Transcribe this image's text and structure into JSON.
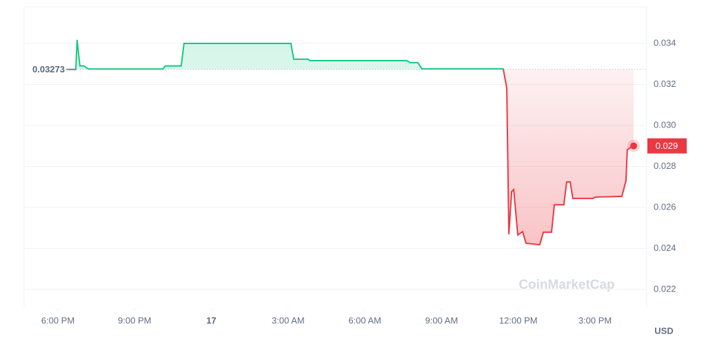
{
  "chart_data": {
    "type": "line",
    "x": [
      0.43,
      0.7,
      0.75,
      0.86,
      1.02,
      1.19,
      4.1,
      4.2,
      4.82,
      4.93,
      9.11,
      9.22,
      9.78,
      9.86,
      13.64,
      13.77,
      14.07,
      14.23,
      17.41,
      17.55,
      17.63,
      17.74,
      17.82,
      17.98,
      18.17,
      18.3,
      18.84,
      18.98,
      19.3,
      19.41,
      19.78,
      19.89,
      20.03,
      20.13,
      20.92,
      21.0,
      22.05,
      22.21,
      22.26,
      22.51
    ],
    "values": [
      0.03273,
      0.03273,
      0.03417,
      0.0329,
      0.0329,
      0.03275,
      0.03275,
      0.0329,
      0.0329,
      0.034,
      0.034,
      0.03323,
      0.03323,
      0.03316,
      0.03316,
      0.03306,
      0.03306,
      0.03276,
      0.03276,
      0.03181,
      0.02469,
      0.02677,
      0.02687,
      0.02466,
      0.02482,
      0.02425,
      0.02418,
      0.02479,
      0.02479,
      0.02613,
      0.02613,
      0.02724,
      0.02724,
      0.02644,
      0.02644,
      0.0265,
      0.02654,
      0.02731,
      0.02882,
      0.029
    ],
    "baseline": 0.03273,
    "current_price": 0.029,
    "up_color": "#16c784",
    "down_color": "#ea3943",
    "xlim": [
      -1.32,
      23.02
    ],
    "xticks": [
      {
        "value": 0,
        "label": "6:00 PM"
      },
      {
        "value": 3,
        "label": "9:00 PM"
      },
      {
        "value": 6,
        "label": "17"
      },
      {
        "value": 9,
        "label": "3:00 AM"
      },
      {
        "value": 12,
        "label": "6:00 AM"
      },
      {
        "value": 15,
        "label": "9:00 AM"
      },
      {
        "value": 18,
        "label": "12:00 PM"
      },
      {
        "value": 21,
        "label": "3:00 PM"
      }
    ],
    "ylim": [
      0.02109,
      0.03578
    ],
    "yticks": [
      0.022,
      0.024,
      0.026,
      0.028,
      0.03,
      0.032,
      0.034
    ],
    "ytick_labels": [
      "0.022",
      "0.024",
      "0.026",
      "0.028",
      "0.030",
      "0.032",
      "0.034"
    ],
    "currency": "USD",
    "watermark": "CoinMarketCap",
    "grid": true
  }
}
